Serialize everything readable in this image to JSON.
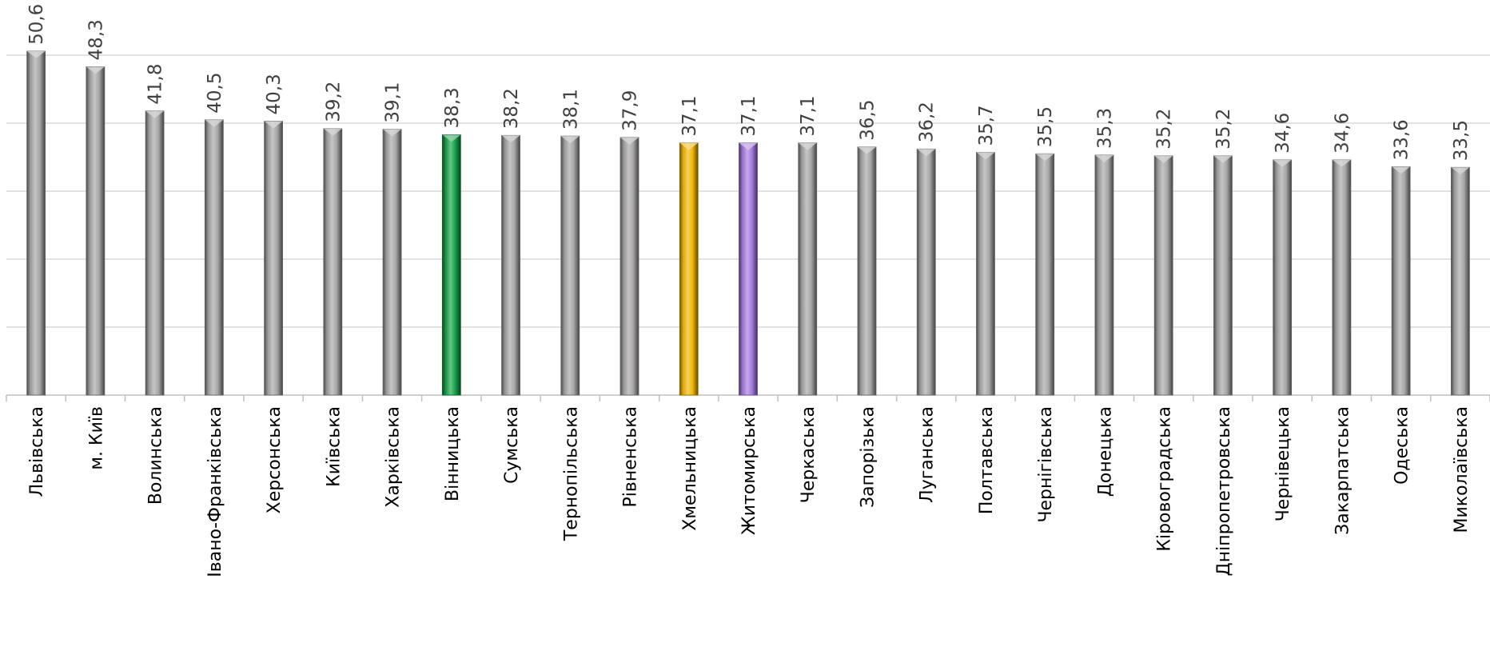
{
  "chart_data": {
    "type": "bar",
    "categories": [
      "Львівська",
      "м. Київ",
      "Волинська",
      "Івано-Франківська",
      "Херсонська",
      "Київська",
      "Харківська",
      "Вінницька",
      "Сумська",
      "Тернопільська",
      "Рівненська",
      "Хмельницька",
      "Житомирська",
      "Черкаська",
      "Запорізька",
      "Луганська",
      "Полтавська",
      "Чернігівська",
      "Донецька",
      "Кіровоградська",
      "Дніпропетровська",
      "Чернівецька",
      "Закарпатська",
      "Одеська",
      "Миколаївська"
    ],
    "values": [
      50.6,
      48.3,
      41.8,
      40.5,
      40.3,
      39.2,
      39.1,
      38.3,
      38.2,
      38.1,
      37.9,
      37.1,
      37.1,
      37.1,
      36.5,
      36.2,
      35.7,
      35.5,
      35.3,
      35.2,
      35.2,
      34.6,
      34.6,
      33.6,
      33.5
    ],
    "value_labels": [
      "50,6",
      "48,3",
      "41,8",
      "40,5",
      "40,3",
      "39,2",
      "39,1",
      "38,3",
      "38,2",
      "38,1",
      "37,9",
      "37,1",
      "37,1",
      "37,1",
      "36,5",
      "36,2",
      "35,7",
      "35,5",
      "35,3",
      "35,2",
      "35,2",
      "34,6",
      "34,6",
      "33,6",
      "33,5"
    ],
    "ylim": [
      0,
      50
    ],
    "grid": true,
    "colors": {
      "default": "#a8a6a6",
      "highlight": {
        "Вінницька": "#17a24a",
        "Хмельницька": "#f2b705",
        "Житомирська": "#a77be0"
      },
      "gridline": "#d9d9d9"
    }
  }
}
